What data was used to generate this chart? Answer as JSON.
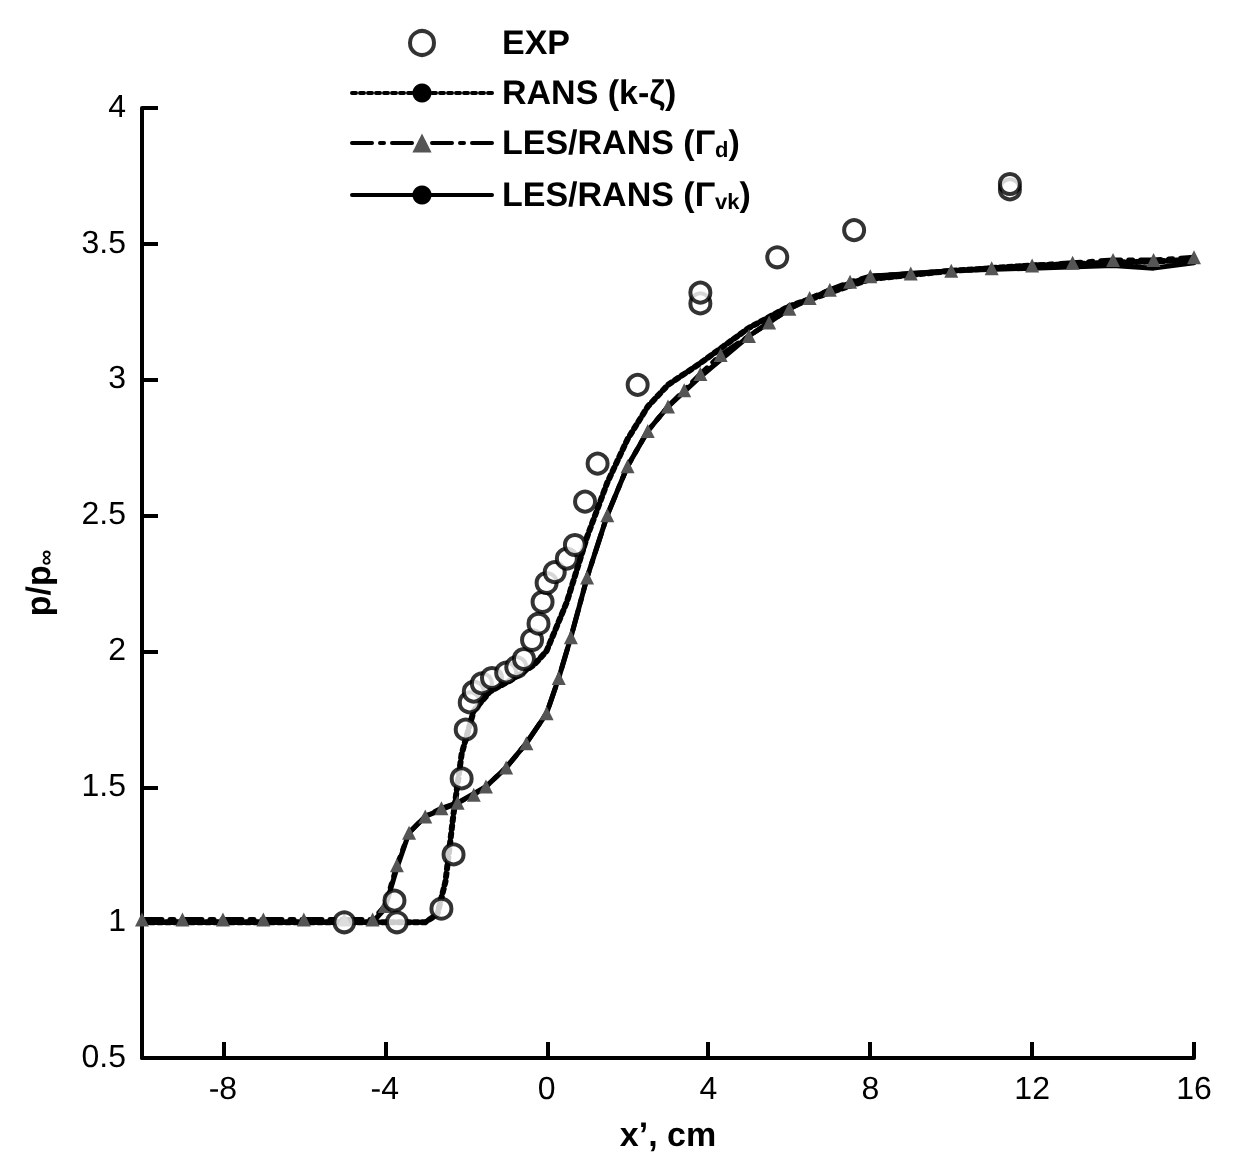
{
  "chart_data": {
    "type": "line",
    "xlabel": "x’, cm",
    "ylabel": "p/p$_{∞}$",
    "xlim": [
      -10,
      16
    ],
    "xticks": [
      -8,
      -4,
      0,
      4,
      8,
      12,
      16
    ],
    "ylim": [
      0.5,
      4
    ],
    "yticks": [
      0.5,
      1,
      1.5,
      2,
      2.5,
      3,
      3.5,
      4
    ],
    "grid": false,
    "legend": "top",
    "series": [
      {
        "name": "EXP",
        "type": "scatter",
        "color": "#000000",
        "marker": "circle",
        "x": [
          -5.0,
          -3.76,
          -3.7,
          -2.6,
          -2.3,
          -2.1,
          -2.0,
          -1.9,
          -1.8,
          -1.6,
          -1.35,
          -1.0,
          -0.75,
          -0.56,
          -0.36,
          -0.2,
          -0.1,
          0.0,
          0.2,
          0.5,
          0.7,
          0.95,
          1.26,
          2.25,
          3.8,
          3.8,
          5.7,
          7.6,
          11.45,
          11.45
        ],
        "values": [
          1.0,
          1.08,
          1.0,
          1.05,
          1.25,
          1.53,
          1.71,
          1.81,
          1.85,
          1.88,
          1.9,
          1.92,
          1.94,
          1.97,
          2.04,
          2.1,
          2.18,
          2.25,
          2.29,
          2.34,
          2.39,
          2.55,
          2.69,
          2.98,
          3.28,
          3.32,
          3.45,
          3.55,
          3.7,
          3.72
        ]
      },
      {
        "name": "RANS (k-ζ)",
        "color": "#000000",
        "marker": "none",
        "line_style": "dotted",
        "x": [
          -10,
          -3,
          -2.7,
          -2.5,
          -2.3,
          -2.1,
          -1.8,
          -1.4,
          -0.8,
          -0.3,
          0,
          0.5,
          1,
          1.5,
          2,
          2.5,
          3,
          3.8,
          5,
          6,
          8,
          10,
          12,
          16
        ],
        "values": [
          1.0,
          1.0,
          1.03,
          1.15,
          1.4,
          1.62,
          1.78,
          1.85,
          1.9,
          1.95,
          2.0,
          2.18,
          2.42,
          2.62,
          2.78,
          2.9,
          2.98,
          3.06,
          3.19,
          3.27,
          3.37,
          3.4,
          3.42,
          3.44
        ]
      },
      {
        "name": "LES/RANS (Γ$_{d}$)",
        "color": "#555555",
        "marker": "triangle",
        "line_style": "dashed",
        "x": [
          -10,
          -9,
          -8,
          -7,
          -6,
          -5,
          -4.3,
          -4.0,
          -3.7,
          -3.4,
          -3.0,
          -2.6,
          -2.2,
          -1.8,
          -1.5,
          -1.0,
          -0.5,
          0,
          0.3,
          0.6,
          1.0,
          1.5,
          2,
          2.5,
          3,
          3.4,
          3.8,
          4.3,
          5,
          5.5,
          6,
          6.5,
          7,
          7.5,
          8,
          9,
          10,
          11,
          12,
          13,
          14,
          15,
          16
        ],
        "values": [
          1.01,
          1.01,
          1.01,
          1.01,
          1.01,
          1.01,
          1.01,
          1.06,
          1.21,
          1.33,
          1.39,
          1.42,
          1.44,
          1.47,
          1.5,
          1.57,
          1.66,
          1.77,
          1.9,
          2.05,
          2.27,
          2.5,
          2.68,
          2.81,
          2.9,
          2.96,
          3.02,
          3.09,
          3.16,
          3.21,
          3.26,
          3.3,
          3.33,
          3.36,
          3.38,
          3.39,
          3.4,
          3.41,
          3.42,
          3.43,
          3.44,
          3.44,
          3.45
        ]
      },
      {
        "name": "LES/RANS (Γ$_{vk}$)",
        "color": "#000000",
        "marker": "none",
        "line_style": "solid",
        "x": [
          -10,
          -4.3,
          -4.0,
          -3.7,
          -3.4,
          -3.0,
          -2.2,
          -1.5,
          -1.0,
          -0.5,
          0,
          0.3,
          0.6,
          1.0,
          1.5,
          2,
          2.5,
          3,
          3.8,
          5,
          6,
          7,
          8,
          10,
          12,
          14,
          15,
          16
        ],
        "values": [
          1.0,
          1.0,
          1.05,
          1.2,
          1.33,
          1.39,
          1.44,
          1.5,
          1.57,
          1.66,
          1.77,
          1.9,
          2.05,
          2.27,
          2.5,
          2.68,
          2.81,
          2.9,
          3.01,
          3.16,
          3.26,
          3.33,
          3.38,
          3.4,
          3.41,
          3.42,
          3.41,
          3.43
        ]
      }
    ]
  }
}
